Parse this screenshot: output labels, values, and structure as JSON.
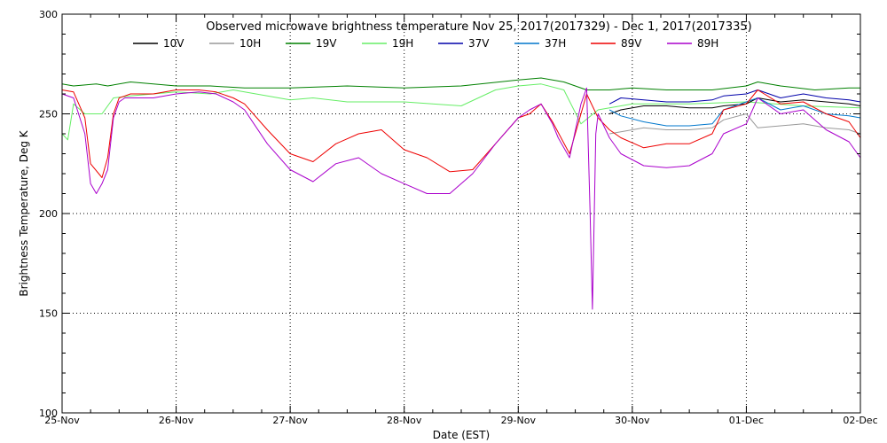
{
  "chart_data": {
    "type": "line",
    "title": "Observed microwave brightness temperature Nov 25, 2017(2017329) - Dec  1, 2017(2017335)",
    "xlabel": "Date (EST)",
    "ylabel": "Brightness Temperature, Deg K",
    "xlim": [
      0,
      7
    ],
    "ylim": [
      100,
      300
    ],
    "yticks": [
      100,
      150,
      200,
      250,
      300
    ],
    "xtick_labels": [
      "25-Nov",
      "26-Nov",
      "27-Nov",
      "28-Nov",
      "29-Nov",
      "30-Nov",
      "01-Dec",
      "02-Dec"
    ],
    "grid": true,
    "legend_position": "top",
    "series": [
      {
        "name": "10V",
        "color": "#000000",
        "x": [
          3.55,
          4.65,
          4.8,
          4.9,
          5.1,
          5.3,
          5.5,
          5.7,
          5.8,
          6.0,
          6.1,
          6.3,
          6.5,
          6.7,
          6.9,
          7.0
        ],
        "y": [
          null,
          null,
          250,
          252,
          254,
          254,
          253,
          253,
          254,
          255,
          258,
          256,
          257,
          256,
          255,
          254
        ]
      },
      {
        "name": "10H",
        "color": "#999999",
        "x": [
          4.65,
          4.8,
          4.9,
          5.1,
          5.3,
          5.5,
          5.7,
          5.8,
          6.0,
          6.1,
          6.3,
          6.5,
          6.7,
          6.9,
          7.0
        ],
        "y": [
          null,
          240,
          241,
          243,
          242,
          242,
          243,
          247,
          250,
          243,
          244,
          245,
          243,
          242,
          240
        ]
      },
      {
        "name": "19V",
        "color": "#008000",
        "x": [
          0,
          0.1,
          0.3,
          0.4,
          0.6,
          1.0,
          1.3,
          1.6,
          2.0,
          2.5,
          3.0,
          3.5,
          4.0,
          4.2,
          4.4,
          4.6,
          4.8,
          5.0,
          5.3,
          5.7,
          6.0,
          6.1,
          6.3,
          6.6,
          6.9,
          7.0
        ],
        "y": [
          265,
          264,
          265,
          264,
          266,
          264,
          264,
          263,
          263,
          264,
          263,
          264,
          267,
          268,
          266,
          262,
          262,
          263,
          262,
          262,
          264,
          266,
          264,
          262,
          263,
          263
        ]
      },
      {
        "name": "19H",
        "color": "#66ee66",
        "x": [
          0,
          0.05,
          0.1,
          0.2,
          0.35,
          0.45,
          0.6,
          1.0,
          1.3,
          1.5,
          2.0,
          2.2,
          2.5,
          3.0,
          3.5,
          3.8,
          4.0,
          4.2,
          4.4,
          4.55,
          4.7,
          5.0,
          5.5,
          6.0,
          6.5,
          7.0
        ],
        "y": [
          240,
          237,
          255,
          250,
          250,
          258,
          259,
          261,
          260,
          262,
          257,
          258,
          256,
          256,
          254,
          262,
          264,
          265,
          262,
          245,
          252,
          255,
          255,
          256,
          254,
          253
        ]
      },
      {
        "name": "37V",
        "color": "#0000aa",
        "x": [
          4.65,
          4.8,
          4.9,
          5.1,
          5.3,
          5.5,
          5.7,
          5.8,
          6.0,
          6.1,
          6.3,
          6.5,
          6.7,
          6.9,
          7.0
        ],
        "y": [
          null,
          255,
          258,
          257,
          256,
          256,
          257,
          259,
          260,
          262,
          258,
          260,
          258,
          257,
          256
        ]
      },
      {
        "name": "37H",
        "color": "#0077cc",
        "x": [
          4.65,
          4.8,
          4.9,
          5.1,
          5.3,
          5.5,
          5.7,
          5.8,
          6.0,
          6.1,
          6.3,
          6.5,
          6.7,
          6.9,
          7.0
        ],
        "y": [
          null,
          252,
          249,
          246,
          244,
          244,
          245,
          252,
          256,
          258,
          252,
          254,
          250,
          249,
          248
        ]
      },
      {
        "name": "89V",
        "color": "#ee0000",
        "x": [
          0,
          0.1,
          0.2,
          0.25,
          0.35,
          0.4,
          0.45,
          0.5,
          0.55,
          0.6,
          0.8,
          1.0,
          1.2,
          1.35,
          1.5,
          1.6,
          1.8,
          2.0,
          2.2,
          2.4,
          2.6,
          2.8,
          3.0,
          3.2,
          3.4,
          3.6,
          3.8,
          4.0,
          4.1,
          4.2,
          4.3,
          4.45,
          4.6,
          4.7,
          4.8,
          4.9,
          5.1,
          5.3,
          5.5,
          5.7,
          5.8,
          6.0,
          6.1,
          6.3,
          6.5,
          6.7,
          6.9,
          7.0
        ],
        "y": [
          262,
          261,
          248,
          225,
          218,
          228,
          250,
          258,
          259,
          260,
          260,
          262,
          262,
          261,
          258,
          255,
          242,
          230,
          226,
          235,
          240,
          242,
          232,
          228,
          221,
          222,
          235,
          248,
          250,
          255,
          246,
          230,
          260,
          248,
          242,
          238,
          233,
          235,
          235,
          240,
          252,
          255,
          262,
          255,
          256,
          250,
          246,
          238
        ]
      },
      {
        "name": "89H",
        "color": "#aa00cc",
        "x": [
          0,
          0.1,
          0.2,
          0.25,
          0.3,
          0.35,
          0.4,
          0.45,
          0.5,
          0.55,
          0.6,
          0.8,
          1.0,
          1.2,
          1.35,
          1.5,
          1.6,
          1.8,
          2.0,
          2.2,
          2.4,
          2.6,
          2.8,
          3.0,
          3.2,
          3.4,
          3.6,
          3.8,
          4.0,
          4.1,
          4.2,
          4.3,
          4.35,
          4.45,
          4.55,
          4.6,
          4.63,
          4.65,
          4.68,
          4.7,
          4.8,
          4.9,
          5.1,
          5.3,
          5.5,
          5.7,
          5.8,
          6.0,
          6.1,
          6.3,
          6.5,
          6.7,
          6.9,
          7.0
        ],
        "y": [
          260,
          258,
          240,
          215,
          210,
          215,
          222,
          248,
          256,
          258,
          258,
          258,
          260,
          261,
          260,
          256,
          252,
          235,
          222,
          216,
          225,
          228,
          220,
          215,
          210,
          210,
          220,
          235,
          248,
          252,
          255,
          245,
          238,
          228,
          255,
          263,
          200,
          152,
          240,
          250,
          238,
          230,
          224,
          223,
          224,
          230,
          240,
          245,
          258,
          250,
          252,
          242,
          236,
          228
        ]
      }
    ]
  }
}
